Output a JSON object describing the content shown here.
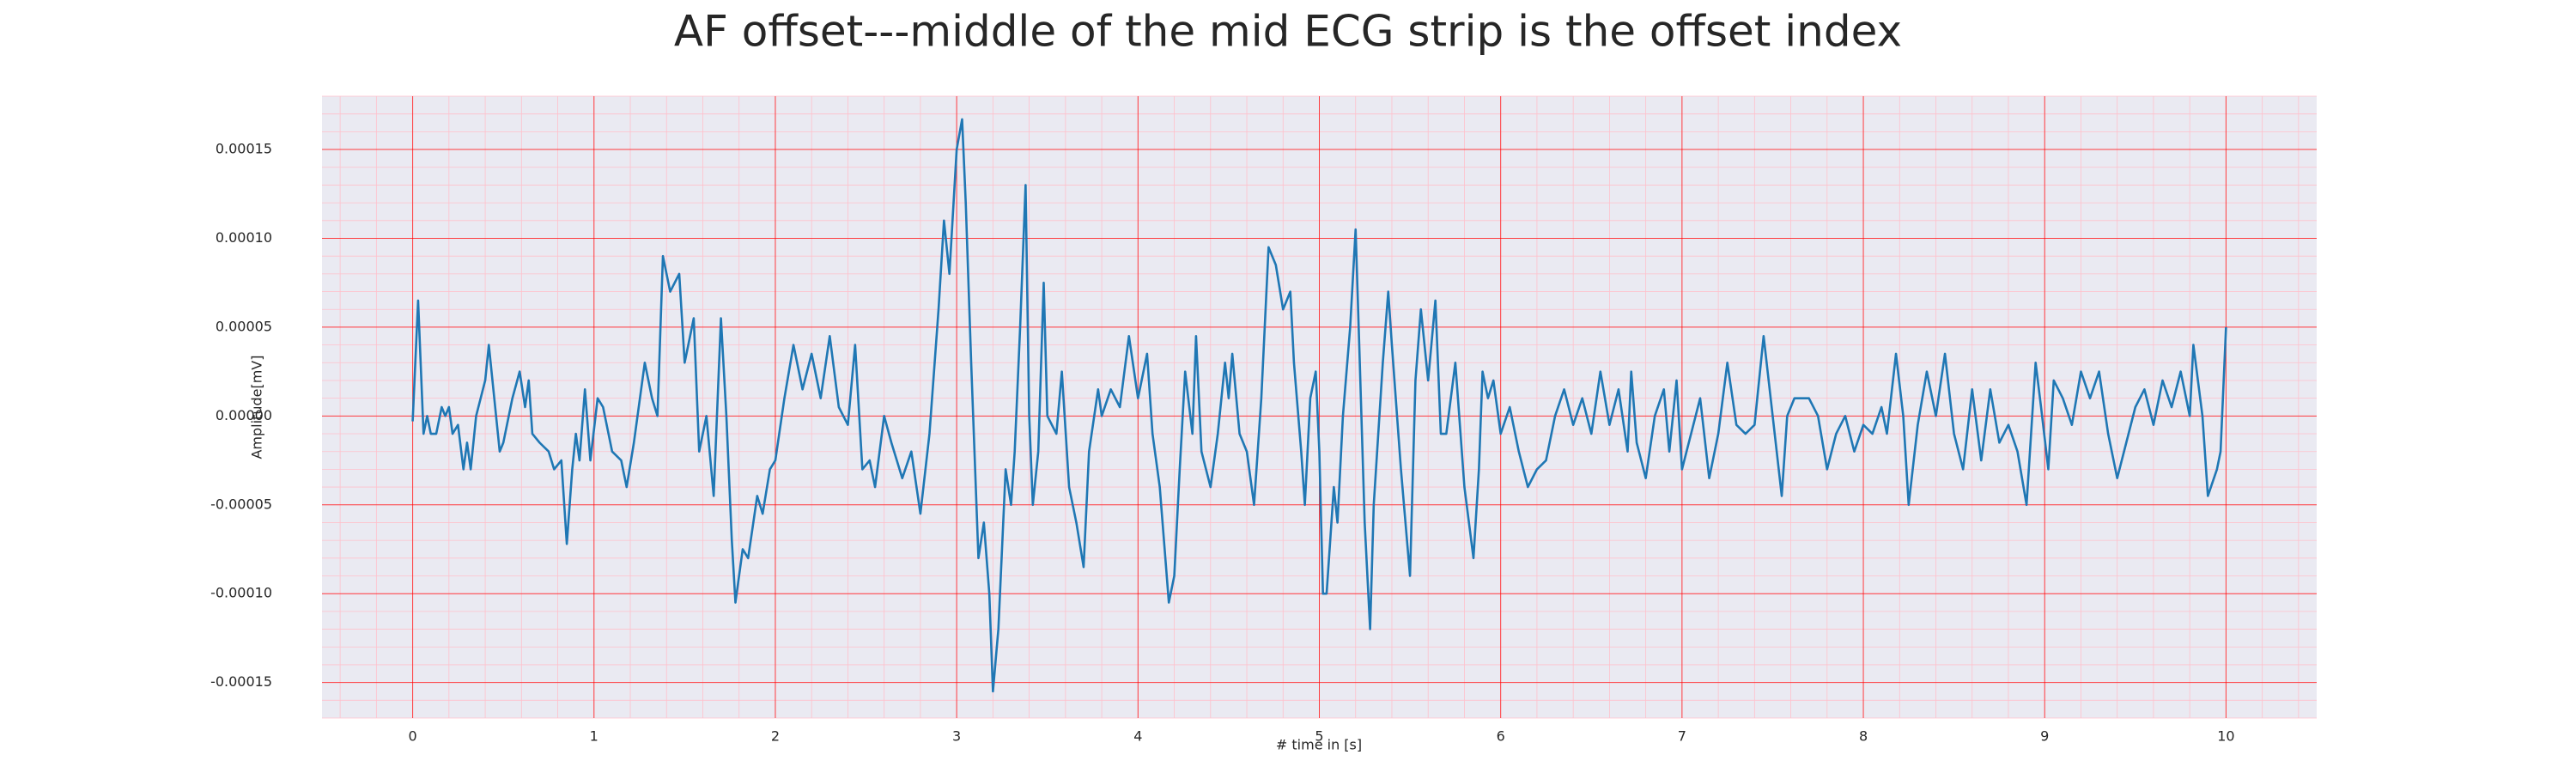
{
  "chart_data": {
    "type": "line",
    "title": "AF offset---middle of the mid ECG strip is the offset index",
    "xlabel": "# time in [s]",
    "ylabel": "Amplitude[mV]",
    "color": "#1f77b4",
    "grid": true,
    "minor_grid": true,
    "xlim": [
      -0.5,
      10.5
    ],
    "xticks": [
      0,
      1,
      2,
      3,
      4,
      5,
      6,
      7,
      8,
      9,
      10
    ],
    "ylim": [
      -0.00017,
      0.00018
    ],
    "yticks": [
      {
        "value": -0.00015,
        "label": "-0.00015"
      },
      {
        "value": -0.0001,
        "label": "-0.00010"
      },
      {
        "value": -5e-05,
        "label": "-0.00005"
      },
      {
        "value": 0,
        "label": "0.00000"
      },
      {
        "value": 5e-05,
        "label": "0.00005"
      },
      {
        "value": 0.0001,
        "label": "0.00010"
      },
      {
        "value": 0.00015,
        "label": "0.00015"
      }
    ],
    "x": [
      0,
      0.03,
      0.06,
      0.08,
      0.1,
      0.13,
      0.16,
      0.18,
      0.2,
      0.22,
      0.25,
      0.28,
      0.3,
      0.32,
      0.35,
      0.4,
      0.42,
      0.45,
      0.48,
      0.5,
      0.55,
      0.59,
      0.62,
      0.64,
      0.66,
      0.7,
      0.75,
      0.78,
      0.82,
      0.85,
      0.88,
      0.9,
      0.92,
      0.95,
      0.98,
      1.02,
      1.05,
      1.1,
      1.15,
      1.18,
      1.22,
      1.28,
      1.32,
      1.35,
      1.38,
      1.42,
      1.47,
      1.5,
      1.55,
      1.58,
      1.62,
      1.66,
      1.7,
      1.73,
      1.76,
      1.78,
      1.82,
      1.85,
      1.9,
      1.93,
      1.97,
      2.0,
      2.05,
      2.1,
      2.15,
      2.2,
      2.25,
      2.3,
      2.35,
      2.4,
      2.44,
      2.48,
      2.52,
      2.55,
      2.6,
      2.64,
      2.7,
      2.75,
      2.8,
      2.85,
      2.9,
      2.93,
      2.96,
      3.0,
      3.03,
      3.05,
      3.08,
      3.12,
      3.15,
      3.18,
      3.2,
      3.23,
      3.27,
      3.3,
      3.32,
      3.35,
      3.38,
      3.4,
      3.42,
      3.45,
      3.48,
      3.5,
      3.55,
      3.58,
      3.62,
      3.66,
      3.7,
      3.73,
      3.78,
      3.8,
      3.85,
      3.9,
      3.95,
      4.0,
      4.05,
      4.08,
      4.12,
      4.17,
      4.2,
      4.23,
      4.26,
      4.3,
      4.32,
      4.35,
      4.4,
      4.44,
      4.48,
      4.5,
      4.52,
      4.56,
      4.6,
      4.64,
      4.68,
      4.72,
      4.76,
      4.8,
      4.84,
      4.86,
      4.9,
      4.92,
      4.95,
      4.98,
      5.0,
      5.02,
      5.04,
      5.06,
      5.08,
      5.1,
      5.13,
      5.17,
      5.2,
      5.22,
      5.25,
      5.28,
      5.3,
      5.35,
      5.38,
      5.4,
      5.45,
      5.5,
      5.53,
      5.56,
      5.6,
      5.64,
      5.67,
      5.7,
      5.75,
      5.8,
      5.85,
      5.88,
      5.9,
      5.93,
      5.96,
      6.0,
      6.05,
      6.1,
      6.15,
      6.2,
      6.25,
      6.3,
      6.35,
      6.4,
      6.45,
      6.5,
      6.55,
      6.6,
      6.65,
      6.7,
      6.72,
      6.75,
      6.8,
      6.85,
      6.9,
      6.93,
      6.97,
      7.0,
      7.05,
      7.1,
      7.15,
      7.2,
      7.25,
      7.3,
      7.35,
      7.4,
      7.45,
      7.5,
      7.55,
      7.58,
      7.62,
      7.7,
      7.75,
      7.8,
      7.85,
      7.9,
      7.95,
      8.0,
      8.05,
      8.1,
      8.13,
      8.18,
      8.22,
      8.25,
      8.3,
      8.35,
      8.4,
      8.45,
      8.5,
      8.55,
      8.6,
      8.65,
      8.7,
      8.75,
      8.8,
      8.85,
      8.9,
      8.95,
      8.98,
      9.02,
      9.05,
      9.1,
      9.15,
      9.2,
      9.25,
      9.3,
      9.35,
      9.4,
      9.45,
      9.5,
      9.55,
      9.6,
      9.65,
      9.7,
      9.75,
      9.8,
      9.82,
      9.87,
      9.9,
      9.95,
      9.97,
      10.0
    ],
    "values": [
      -3e-06,
      6.5e-05,
      -1e-05,
      0,
      -1e-05,
      -1e-05,
      5e-06,
      0,
      5e-06,
      -1e-05,
      -5e-06,
      -3e-05,
      -1.5e-05,
      -3e-05,
      0,
      2e-05,
      4e-05,
      1e-05,
      -2e-05,
      -1.5e-05,
      1e-05,
      2.5e-05,
      5e-06,
      2e-05,
      -1e-05,
      -1.5e-05,
      -2e-05,
      -3e-05,
      -2.5e-05,
      -7.2e-05,
      -3e-05,
      -1e-05,
      -2.5e-05,
      1.5e-05,
      -2.5e-05,
      1e-05,
      5e-06,
      -2e-05,
      -2.5e-05,
      -4e-05,
      -1.5e-05,
      3e-05,
      1e-05,
      0,
      9e-05,
      7e-05,
      8e-05,
      3e-05,
      5.5e-05,
      -2e-05,
      0,
      -4.5e-05,
      5.5e-05,
      0,
      -7e-05,
      -0.000105,
      -7.5e-05,
      -8e-05,
      -4.5e-05,
      -5.5e-05,
      -3e-05,
      -2.5e-05,
      1e-05,
      4e-05,
      1.5e-05,
      3.5e-05,
      1e-05,
      4.5e-05,
      5e-06,
      -5e-06,
      4e-05,
      -3e-05,
      -2.5e-05,
      -4e-05,
      0,
      -1.5e-05,
      -3.5e-05,
      -2e-05,
      -5.5e-05,
      -1e-05,
      6e-05,
      0.00011,
      8e-05,
      0.00015,
      0.000167,
      0.00012,
      3e-05,
      -8e-05,
      -6e-05,
      -0.0001,
      -0.000155,
      -0.00012,
      -3e-05,
      -5e-05,
      -2e-05,
      5e-05,
      0.00013,
      0,
      -5e-05,
      -2e-05,
      7.5e-05,
      0,
      -1e-05,
      2.5e-05,
      -4e-05,
      -6e-05,
      -8.5e-05,
      -2e-05,
      1.5e-05,
      0,
      1.5e-05,
      5e-06,
      4.5e-05,
      1e-05,
      3.5e-05,
      -1e-05,
      -4e-05,
      -0.000105,
      -9e-05,
      -3e-05,
      2.5e-05,
      -1e-05,
      4.5e-05,
      -2e-05,
      -4e-05,
      -1e-05,
      3e-05,
      1e-05,
      3.5e-05,
      -1e-05,
      -2e-05,
      -5e-05,
      1e-05,
      9.5e-05,
      8.5e-05,
      6e-05,
      7e-05,
      3e-05,
      -2e-05,
      -5e-05,
      1e-05,
      2.5e-05,
      -2e-05,
      -0.0001,
      -0.0001,
      -7e-05,
      -4e-05,
      -6e-05,
      0,
      5e-05,
      0.000105,
      4e-05,
      -6e-05,
      -0.00012,
      -5e-05,
      3e-05,
      7e-05,
      4e-05,
      -3e-05,
      -9e-05,
      2e-05,
      6e-05,
      2e-05,
      6.5e-05,
      -1e-05,
      -1e-05,
      3e-05,
      -4e-05,
      -8e-05,
      -3e-05,
      2.5e-05,
      1e-05,
      2e-05,
      -1e-05,
      5e-06,
      -2e-05,
      -4e-05,
      -3e-05,
      -2.5e-05,
      0,
      1.5e-05,
      -5e-06,
      1e-05,
      -1e-05,
      2.5e-05,
      -5e-06,
      1.5e-05,
      -2e-05,
      2.5e-05,
      -1.5e-05,
      -3.5e-05,
      0,
      1.5e-05,
      -2e-05,
      2e-05,
      -3e-05,
      -1e-05,
      1e-05,
      -3.5e-05,
      -1e-05,
      3e-05,
      -5e-06,
      -1e-05,
      -5e-06,
      4.5e-05,
      0,
      -4.5e-05,
      0,
      1e-05,
      1e-05,
      0,
      -3e-05,
      -1e-05,
      0,
      -2e-05,
      -5e-06,
      -1e-05,
      5e-06,
      -1e-05,
      3.5e-05,
      0,
      -5e-05,
      -5e-06,
      2.5e-05,
      0,
      3.5e-05,
      -1e-05,
      -3e-05,
      1.5e-05,
      -2.5e-05,
      1.5e-05,
      -1.5e-05,
      -5e-06,
      -2e-05,
      -5e-05,
      3e-05,
      5e-06,
      -3e-05,
      2e-05,
      1e-05,
      -5e-06,
      2.5e-05,
      1e-05,
      2.5e-05,
      -1e-05,
      -3.5e-05,
      -1.5e-05,
      5e-06,
      1.5e-05,
      -5e-06,
      2e-05,
      5e-06,
      2.5e-05,
      0,
      4e-05,
      0,
      -4.5e-05,
      -3e-05,
      -2e-05,
      5e-05
    ]
  }
}
